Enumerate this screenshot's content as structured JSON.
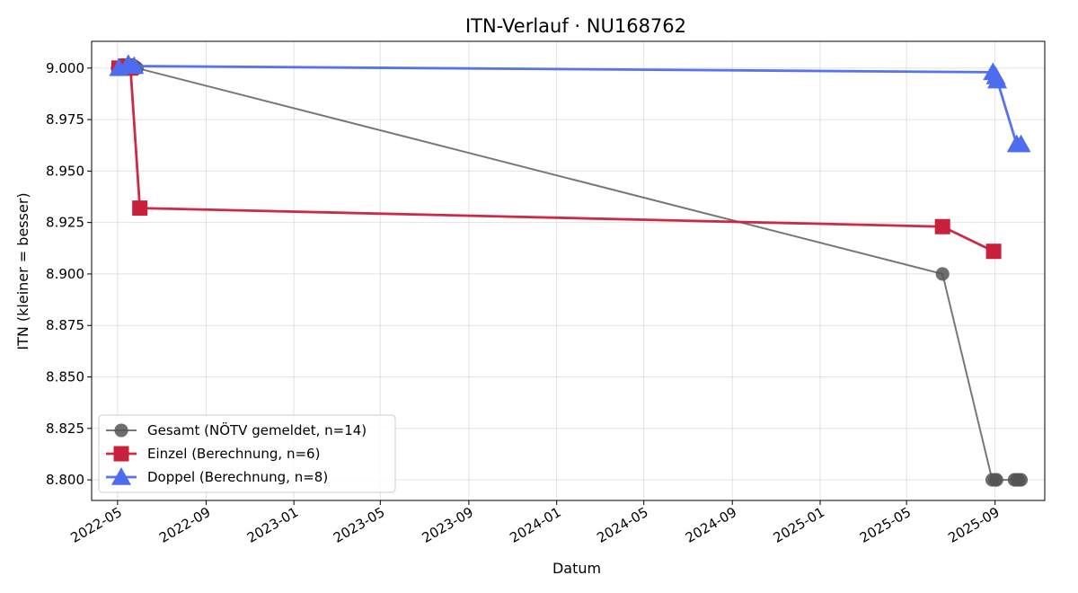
{
  "chart_data": {
    "type": "line",
    "title": "ITN-Verlauf · NU168762",
    "xlabel": "Datum",
    "ylabel": "ITN  (kleiner = besser)",
    "x_ticks": [
      "2022-05",
      "2022-09",
      "2023-01",
      "2023-05",
      "2023-09",
      "2024-01",
      "2024-05",
      "2024-09",
      "2025-01",
      "2025-05",
      "2025-09"
    ],
    "y_ticks": [
      "8.800",
      "8.825",
      "8.850",
      "8.875",
      "8.900",
      "8.925",
      "8.950",
      "8.975",
      "9.000"
    ],
    "xlim": [
      "2022-03-26",
      "2025-11-09"
    ],
    "ylim": [
      8.79,
      9.013
    ],
    "grid": true,
    "legend_position": "lower-left",
    "series": [
      {
        "name": "Gesamt (NÖTV gemeldet, n=14)",
        "color": "#555555",
        "marker": "circle",
        "points": [
          [
            "2022-05-01",
            9.0
          ],
          [
            "2022-05-08",
            9.0
          ],
          [
            "2022-05-14",
            9.0
          ],
          [
            "2022-05-20",
            9.001
          ],
          [
            "2022-05-24",
            9.001
          ],
          [
            "2022-05-28",
            9.0
          ],
          [
            "2025-06-20",
            8.9
          ],
          [
            "2025-08-28",
            8.8
          ],
          [
            "2025-09-01",
            8.8
          ],
          [
            "2025-09-03",
            8.8
          ],
          [
            "2025-09-28",
            8.8
          ],
          [
            "2025-10-01",
            8.8
          ],
          [
            "2025-10-04",
            8.8
          ],
          [
            "2025-10-07",
            8.8
          ]
        ]
      },
      {
        "name": "Einzel (Berechnung, n=6)",
        "color": "#c8203d",
        "marker": "square",
        "points": [
          [
            "2022-05-03",
            9.0
          ],
          [
            "2022-05-12",
            9.001
          ],
          [
            "2022-05-19",
            9.0
          ],
          [
            "2022-06-01",
            8.932
          ],
          [
            "2025-06-20",
            8.923
          ],
          [
            "2025-08-30",
            8.911
          ]
        ]
      },
      {
        "name": "Doppel (Berechnung, n=8)",
        "color": "#4e6cee",
        "marker": "triangle",
        "points": [
          [
            "2022-05-03",
            9.0
          ],
          [
            "2022-05-16",
            9.002
          ],
          [
            "2022-05-24",
            9.001
          ],
          [
            "2025-08-29",
            8.998
          ],
          [
            "2025-09-02",
            8.996
          ],
          [
            "2025-09-04",
            8.994
          ],
          [
            "2025-10-01",
            8.963
          ],
          [
            "2025-10-07",
            8.963
          ]
        ]
      }
    ]
  }
}
